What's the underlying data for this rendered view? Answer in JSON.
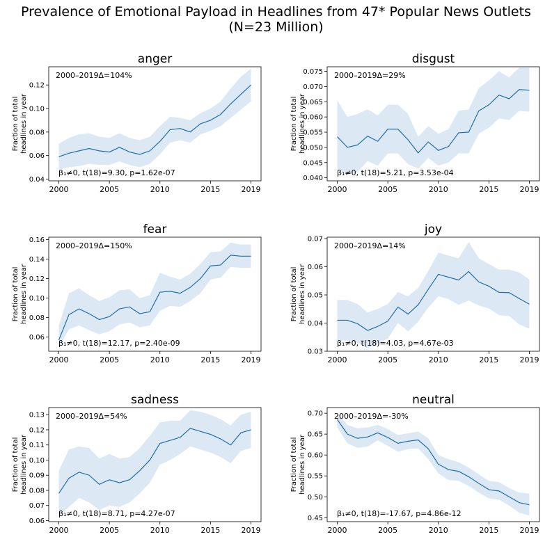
{
  "title_line1": "Prevalence of Emotional Payload in Headlines from 47* Popular News Outlets",
  "title_line2": "(N=23 Million)",
  "colors": {
    "line": "#1f6fa8",
    "band": "#dce9f5",
    "axis": "#000000"
  },
  "chart_data": [
    {
      "type": "line",
      "title": "anger",
      "ylabel": [
        "Fraction of total",
        "headlines in year"
      ],
      "delta_label": "2000–2019Δ=104%",
      "stat_label": "β₁≠0, t(18)=9.30, p=1.62e-07",
      "x": [
        2000,
        2001,
        2002,
        2003,
        2004,
        2005,
        2006,
        2007,
        2008,
        2009,
        2010,
        2011,
        2012,
        2013,
        2014,
        2015,
        2016,
        2017,
        2018,
        2019
      ],
      "values": [
        0.059,
        0.062,
        0.064,
        0.066,
        0.064,
        0.063,
        0.067,
        0.063,
        0.061,
        0.064,
        0.072,
        0.082,
        0.083,
        0.08,
        0.087,
        0.09,
        0.095,
        0.104,
        0.112,
        0.12
      ],
      "upper": [
        0.07,
        0.075,
        0.078,
        0.079,
        0.076,
        0.075,
        0.079,
        0.075,
        0.073,
        0.076,
        0.085,
        0.093,
        0.092,
        0.09,
        0.096,
        0.1,
        0.106,
        0.117,
        0.127,
        0.134
      ],
      "lower": [
        0.048,
        0.05,
        0.051,
        0.053,
        0.052,
        0.052,
        0.055,
        0.052,
        0.05,
        0.053,
        0.061,
        0.071,
        0.073,
        0.071,
        0.078,
        0.081,
        0.085,
        0.092,
        0.099,
        0.106
      ],
      "xlim": [
        1999,
        2020
      ],
      "ylim": [
        0.0385,
        0.1355
      ],
      "xticks": [
        2000,
        2005,
        2010,
        2015,
        2019
      ],
      "yticks": [
        0.04,
        0.06,
        0.08,
        0.1,
        0.12
      ],
      "ytick_labels": [
        "0.04",
        "0.06",
        "0.08",
        "0.10",
        "0.12"
      ]
    },
    {
      "type": "line",
      "title": "disgust",
      "ylabel": [
        "Fraction of total",
        "headlines in year"
      ],
      "delta_label": "2000–2019Δ=29%",
      "stat_label": "β₁≠0, t(18)=5.21, p=3.53e-04",
      "x": [
        2000,
        2001,
        2002,
        2003,
        2004,
        2005,
        2006,
        2007,
        2008,
        2009,
        2010,
        2011,
        2012,
        2013,
        2014,
        2015,
        2016,
        2017,
        2018,
        2019
      ],
      "values": [
        0.0535,
        0.05,
        0.0508,
        0.0537,
        0.052,
        0.056,
        0.056,
        0.0525,
        0.0482,
        0.0518,
        0.049,
        0.0503,
        0.0548,
        0.055,
        0.062,
        0.064,
        0.0672,
        0.066,
        0.069,
        0.0688
      ],
      "upper": [
        0.0655,
        0.06,
        0.061,
        0.0625,
        0.0605,
        0.064,
        0.064,
        0.061,
        0.0535,
        0.057,
        0.0545,
        0.056,
        0.062,
        0.0625,
        0.0695,
        0.072,
        0.075,
        0.073,
        0.0762,
        0.0762
      ],
      "lower": [
        0.0425,
        0.041,
        0.042,
        0.0455,
        0.044,
        0.048,
        0.048,
        0.0445,
        0.043,
        0.0465,
        0.044,
        0.045,
        0.048,
        0.048,
        0.0545,
        0.0565,
        0.0595,
        0.059,
        0.062,
        0.0617
      ],
      "xlim": [
        1999,
        2020
      ],
      "ylim": [
        0.039,
        0.0765
      ],
      "xticks": [
        2000,
        2005,
        2010,
        2015,
        2019
      ],
      "yticks": [
        0.04,
        0.045,
        0.05,
        0.055,
        0.06,
        0.065,
        0.07,
        0.075
      ],
      "ytick_labels": [
        "0.040",
        "0.045",
        "0.050",
        "0.055",
        "0.060",
        "0.065",
        "0.070",
        "0.075"
      ]
    },
    {
      "type": "line",
      "title": "fear",
      "ylabel": [
        "Fraction of total",
        "headlines in year"
      ],
      "delta_label": "2000–2019Δ=150%",
      "stat_label": "β₁≠0, t(18)=12.17, p=2.40e-09",
      "x": [
        2000,
        2001,
        2002,
        2003,
        2004,
        2005,
        2006,
        2007,
        2008,
        2009,
        2010,
        2011,
        2012,
        2013,
        2014,
        2015,
        2016,
        2017,
        2018,
        2019
      ],
      "values": [
        0.057,
        0.083,
        0.089,
        0.084,
        0.078,
        0.081,
        0.089,
        0.091,
        0.084,
        0.086,
        0.106,
        0.107,
        0.105,
        0.111,
        0.12,
        0.133,
        0.134,
        0.144,
        0.143,
        0.143
      ],
      "upper": [
        0.072,
        0.105,
        0.11,
        0.103,
        0.097,
        0.101,
        0.108,
        0.109,
        0.1,
        0.103,
        0.126,
        0.122,
        0.119,
        0.125,
        0.135,
        0.147,
        0.148,
        0.157,
        0.155,
        0.155
      ],
      "lower": [
        0.05,
        0.068,
        0.072,
        0.067,
        0.063,
        0.066,
        0.073,
        0.075,
        0.07,
        0.072,
        0.087,
        0.092,
        0.091,
        0.097,
        0.105,
        0.119,
        0.121,
        0.132,
        0.131,
        0.131
      ],
      "xlim": [
        1999,
        2020
      ],
      "ylim": [
        0.0455,
        0.1625
      ],
      "xticks": [
        2000,
        2005,
        2010,
        2015,
        2019
      ],
      "yticks": [
        0.06,
        0.08,
        0.1,
        0.12,
        0.14,
        0.16
      ],
      "ytick_labels": [
        "0.06",
        "0.08",
        "0.10",
        "0.12",
        "0.14",
        "0.16"
      ]
    },
    {
      "type": "line",
      "title": "joy",
      "ylabel": [
        "Fraction of total",
        "headlines in year"
      ],
      "delta_label": "2000–2019Δ=14%",
      "stat_label": "β₁≠0, t(18)=4.03, p=4.67e-03",
      "x": [
        2000,
        2001,
        2002,
        2003,
        2004,
        2005,
        2006,
        2007,
        2008,
        2009,
        2010,
        2011,
        2012,
        2013,
        2014,
        2015,
        2016,
        2017,
        2018,
        2019
      ],
      "values": [
        0.041,
        0.041,
        0.0398,
        0.0374,
        0.0388,
        0.0407,
        0.0457,
        0.0432,
        0.0465,
        0.052,
        0.0573,
        0.0563,
        0.0553,
        0.0583,
        0.0546,
        0.0531,
        0.0509,
        0.0508,
        0.0487,
        0.0467
      ],
      "upper": [
        0.0482,
        0.0482,
        0.0468,
        0.0438,
        0.045,
        0.0468,
        0.051,
        0.0495,
        0.0525,
        0.0585,
        0.065,
        0.064,
        0.063,
        0.0688,
        0.063,
        0.061,
        0.059,
        0.059,
        0.058,
        0.0555
      ],
      "lower": [
        0.0338,
        0.0338,
        0.033,
        0.0312,
        0.0325,
        0.0345,
        0.04,
        0.037,
        0.0405,
        0.0455,
        0.0495,
        0.0485,
        0.0465,
        0.048,
        0.0462,
        0.0452,
        0.0428,
        0.0425,
        0.0395,
        0.038
      ],
      "xlim": [
        1999,
        2020
      ],
      "ylim": [
        0.03,
        0.0705
      ],
      "xticks": [
        2000,
        2005,
        2010,
        2015,
        2019
      ],
      "yticks": [
        0.03,
        0.04,
        0.05,
        0.06,
        0.07
      ],
      "ytick_labels": [
        "0.03",
        "0.04",
        "0.05",
        "0.06",
        "0.07"
      ]
    },
    {
      "type": "line",
      "title": "sadness",
      "ylabel": [
        "Fraction of total",
        "headlines in year"
      ],
      "delta_label": "2000–2019Δ=54%",
      "stat_label": "β₁≠0, t(18)=8.71, p=4.27e-07",
      "x": [
        2000,
        2001,
        2002,
        2003,
        2004,
        2005,
        2006,
        2007,
        2008,
        2009,
        2010,
        2011,
        2012,
        2013,
        2014,
        2015,
        2016,
        2017,
        2018,
        2019
      ],
      "values": [
        0.078,
        0.088,
        0.092,
        0.09,
        0.084,
        0.087,
        0.085,
        0.087,
        0.093,
        0.1,
        0.111,
        0.113,
        0.115,
        0.121,
        0.119,
        0.117,
        0.114,
        0.11,
        0.118,
        0.12
      ],
      "upper": [
        0.093,
        0.107,
        0.109,
        0.108,
        0.101,
        0.104,
        0.101,
        0.102,
        0.108,
        0.116,
        0.125,
        0.126,
        0.126,
        0.133,
        0.132,
        0.13,
        0.127,
        0.123,
        0.13,
        0.132
      ],
      "lower": [
        0.063,
        0.069,
        0.075,
        0.072,
        0.067,
        0.07,
        0.069,
        0.072,
        0.078,
        0.085,
        0.097,
        0.1,
        0.104,
        0.109,
        0.107,
        0.105,
        0.102,
        0.098,
        0.106,
        0.108
      ],
      "xlim": [
        1999,
        2020
      ],
      "ylim": [
        0.0593,
        0.1347
      ],
      "xticks": [
        2000,
        2005,
        2010,
        2015,
        2019
      ],
      "yticks": [
        0.06,
        0.07,
        0.08,
        0.09,
        0.1,
        0.11,
        0.12,
        0.13
      ],
      "ytick_labels": [
        "0.06",
        "0.07",
        "0.08",
        "0.09",
        "0.10",
        "0.11",
        "0.12",
        "0.13"
      ]
    },
    {
      "type": "line",
      "title": "neutral",
      "ylabel": [
        "Fraction of total",
        "headlines in year"
      ],
      "delta_label": "2000–2019Δ=-30%",
      "stat_label": "β₁≠0, t(18)=-17.67, p=4.86e-12",
      "x": [
        2000,
        2001,
        2002,
        2003,
        2004,
        2005,
        2006,
        2007,
        2008,
        2009,
        2010,
        2011,
        2012,
        2013,
        2014,
        2015,
        2016,
        2017,
        2018,
        2019
      ],
      "values": [
        0.685,
        0.65,
        0.64,
        0.643,
        0.653,
        0.642,
        0.628,
        0.633,
        0.636,
        0.615,
        0.578,
        0.565,
        0.561,
        0.548,
        0.532,
        0.517,
        0.514,
        0.5,
        0.486,
        0.481
      ],
      "upper": [
        0.7,
        0.672,
        0.664,
        0.666,
        0.672,
        0.662,
        0.648,
        0.652,
        0.656,
        0.64,
        0.6,
        0.59,
        0.583,
        0.57,
        0.554,
        0.538,
        0.535,
        0.521,
        0.51,
        0.508
      ],
      "lower": [
        0.666,
        0.628,
        0.617,
        0.62,
        0.635,
        0.622,
        0.608,
        0.614,
        0.616,
        0.59,
        0.556,
        0.54,
        0.538,
        0.526,
        0.51,
        0.496,
        0.493,
        0.479,
        0.462,
        0.455
      ],
      "xlim": [
        1999,
        2020
      ],
      "ylim": [
        0.4405,
        0.7135
      ],
      "xticks": [
        2000,
        2005,
        2010,
        2015,
        2019
      ],
      "yticks": [
        0.45,
        0.5,
        0.55,
        0.6,
        0.65,
        0.7
      ],
      "ytick_labels": [
        "0.45",
        "0.50",
        "0.55",
        "0.60",
        "0.65",
        "0.70"
      ]
    }
  ]
}
